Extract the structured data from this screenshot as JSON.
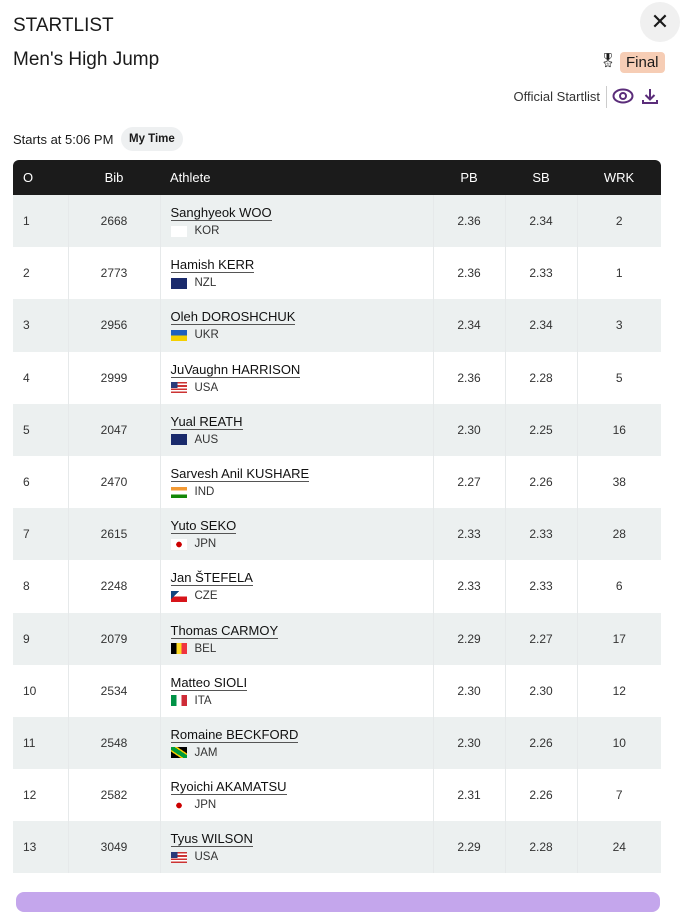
{
  "header": {
    "title": "STARTLIST",
    "event": "Men's High Jump",
    "round_badge": "Final",
    "official_startlist": "Official Startlist",
    "starts_at": "Starts at 5:06 PM",
    "my_time": "My Time"
  },
  "columns": {
    "order": "O",
    "bib": "Bib",
    "athlete": "Athlete",
    "pb": "PB",
    "sb": "SB",
    "wrk": "WRK"
  },
  "rows": [
    {
      "order": "1",
      "bib": "2668",
      "name": "Sanghyeok WOO",
      "country": "KOR",
      "pb": "2.36",
      "sb": "2.34",
      "wrk": "2"
    },
    {
      "order": "2",
      "bib": "2773",
      "name": "Hamish KERR",
      "country": "NZL",
      "pb": "2.36",
      "sb": "2.33",
      "wrk": "1"
    },
    {
      "order": "3",
      "bib": "2956",
      "name": "Oleh DOROSHCHUK",
      "country": "UKR",
      "pb": "2.34",
      "sb": "2.34",
      "wrk": "3"
    },
    {
      "order": "4",
      "bib": "2999",
      "name": "JuVaughn HARRISON",
      "country": "USA",
      "pb": "2.36",
      "sb": "2.28",
      "wrk": "5"
    },
    {
      "order": "5",
      "bib": "2047",
      "name": "Yual REATH",
      "country": "AUS",
      "pb": "2.30",
      "sb": "2.25",
      "wrk": "16"
    },
    {
      "order": "6",
      "bib": "2470",
      "name": "Sarvesh Anil KUSHARE",
      "country": "IND",
      "pb": "2.27",
      "sb": "2.26",
      "wrk": "38"
    },
    {
      "order": "7",
      "bib": "2615",
      "name": "Yuto SEKO",
      "country": "JPN",
      "pb": "2.33",
      "sb": "2.33",
      "wrk": "28"
    },
    {
      "order": "8",
      "bib": "2248",
      "name": "Jan ŠTEFELA",
      "country": "CZE",
      "pb": "2.33",
      "sb": "2.33",
      "wrk": "6"
    },
    {
      "order": "9",
      "bib": "2079",
      "name": "Thomas CARMOY",
      "country": "BEL",
      "pb": "2.29",
      "sb": "2.27",
      "wrk": "17"
    },
    {
      "order": "10",
      "bib": "2534",
      "name": "Matteo SIOLI",
      "country": "ITA",
      "pb": "2.30",
      "sb": "2.30",
      "wrk": "12"
    },
    {
      "order": "11",
      "bib": "2548",
      "name": "Romaine BECKFORD",
      "country": "JAM",
      "pb": "2.30",
      "sb": "2.26",
      "wrk": "10"
    },
    {
      "order": "12",
      "bib": "2582",
      "name": "Ryoichi AKAMATSU",
      "country": "JPN",
      "pb": "2.31",
      "sb": "2.26",
      "wrk": "7"
    },
    {
      "order": "13",
      "bib": "3049",
      "name": "Tyus WILSON",
      "country": "USA",
      "pb": "2.29",
      "sb": "2.28",
      "wrk": "24"
    }
  ],
  "colors": {
    "accent": "#5b2d7a",
    "badge": "#f6cdb5",
    "header_bg": "#1b1b1b",
    "row_alt": "#ecf0f0"
  }
}
